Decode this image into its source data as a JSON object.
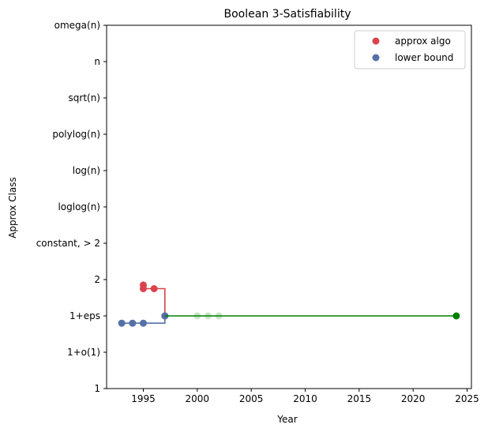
{
  "chart_data": {
    "type": "scatter",
    "title": "Boolean 3-Satisfiability",
    "xlabel": "Year",
    "ylabel": "Approx Class",
    "xlim": [
      1991.6,
      2025.4
    ],
    "x_ticks": [
      1995,
      2000,
      2005,
      2010,
      2015,
      2020,
      2025
    ],
    "y_categories": [
      "1",
      "1+o(1)",
      "1+eps",
      "2",
      "constant, > 2",
      "loglog(n)",
      "log(n)",
      "polylog(n)",
      "sqrt(n)",
      "n",
      "omega(n)"
    ],
    "grid": false,
    "legend": {
      "placement": "top-right",
      "entries": [
        {
          "label": "approx algo",
          "color": "#d9434b"
        },
        {
          "label": "lower bound",
          "color": "#5470a6"
        }
      ]
    },
    "series": [
      {
        "name": "approx algo",
        "color": "#d9434b",
        "points": [
          {
            "x": 1995,
            "y": 2.85
          },
          {
            "x": 1995,
            "y": 2.75
          },
          {
            "x": 1996,
            "y": 2.75
          },
          {
            "x": 1997,
            "y": 2.0
          }
        ],
        "step_line": [
          {
            "x": 1995,
            "y": 2.75
          },
          {
            "x": 1996,
            "y": 2.75
          },
          {
            "x": 1997,
            "y": 2.75
          },
          {
            "x": 1997,
            "y": 2.0
          }
        ]
      },
      {
        "name": "lower bound",
        "color": "#5470a6",
        "points": [
          {
            "x": 1993,
            "y": 1.8
          },
          {
            "x": 1994,
            "y": 1.8
          },
          {
            "x": 1995,
            "y": 1.8
          },
          {
            "x": 1997,
            "y": 2.0
          }
        ],
        "step_line": [
          {
            "x": 1993,
            "y": 1.8
          },
          {
            "x": 1997,
            "y": 1.8
          },
          {
            "x": 1997,
            "y": 2.0
          }
        ]
      },
      {
        "name": "",
        "color": "#c8e6c9",
        "points": [
          {
            "x": 2000,
            "y": 2.0
          },
          {
            "x": 2001,
            "y": 2.0
          },
          {
            "x": 2002,
            "y": 2.0
          }
        ]
      },
      {
        "name": "",
        "color": "#008000",
        "line": [
          {
            "x": 1997,
            "y": 2.0
          },
          {
            "x": 2024,
            "y": 2.0
          }
        ],
        "points": [
          {
            "x": 2024,
            "y": 2.0
          }
        ]
      }
    ]
  }
}
